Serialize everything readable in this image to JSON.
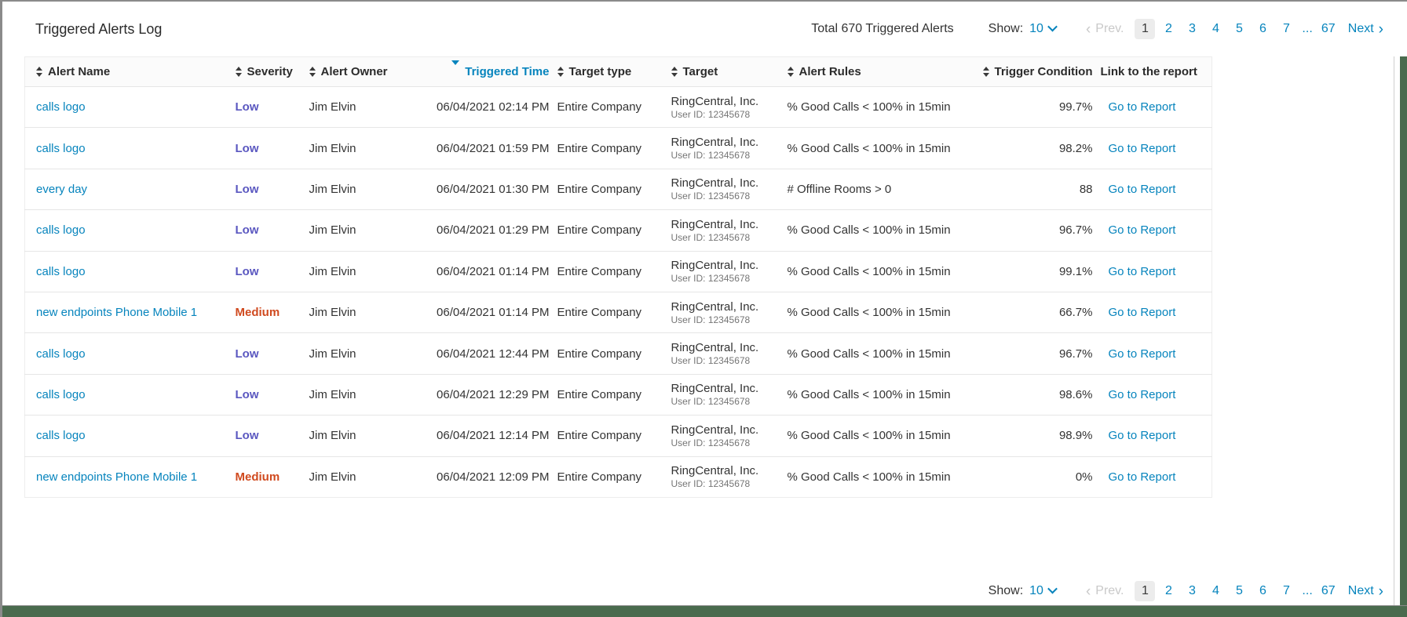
{
  "page": {
    "title": "Triggered Alerts Log",
    "total_text": "Total 670 Triggered Alerts",
    "show_label": "Show:",
    "show_value": "10"
  },
  "pagination": {
    "prev_label": "Prev.",
    "pages": [
      "1",
      "2",
      "3",
      "4",
      "5",
      "6",
      "7"
    ],
    "current_page": "1",
    "ellipsis": "...",
    "last_page": "67",
    "next_label": "Next"
  },
  "table": {
    "columns": [
      {
        "label": "Alert Name",
        "sort": "both",
        "align": "left"
      },
      {
        "label": "Severity",
        "sort": "both",
        "align": "left"
      },
      {
        "label": "Alert Owner",
        "sort": "both",
        "align": "left"
      },
      {
        "label": "Triggered Time",
        "sort": "desc",
        "align": "right"
      },
      {
        "label": "Target type",
        "sort": "both",
        "align": "left"
      },
      {
        "label": "Target",
        "sort": "both",
        "align": "left"
      },
      {
        "label": "Alert Rules",
        "sort": "both",
        "align": "left"
      },
      {
        "label": "Trigger Condition",
        "sort": "both",
        "align": "right"
      },
      {
        "label": "Link to the report",
        "sort": "none",
        "align": "left"
      }
    ],
    "rows": [
      {
        "name": "calls logo",
        "severity": "Low",
        "owner": "Jim Elvin",
        "time": "06/04/2021 02:14 PM",
        "target_type": "Entire Company",
        "target": "RingCentral, Inc.",
        "target_sub": "User ID: 12345678",
        "rule": "% Good Calls < 100% in 15min",
        "condition": "99.7%",
        "link": "Go to Report"
      },
      {
        "name": "calls logo",
        "severity": "Low",
        "owner": "Jim Elvin",
        "time": "06/04/2021 01:59 PM",
        "target_type": "Entire Company",
        "target": "RingCentral, Inc.",
        "target_sub": "User ID: 12345678",
        "rule": "% Good Calls < 100% in 15min",
        "condition": "98.2%",
        "link": "Go to Report"
      },
      {
        "name": "every day",
        "severity": "Low",
        "owner": "Jim Elvin",
        "time": "06/04/2021 01:30 PM",
        "target_type": "Entire Company",
        "target": "RingCentral, Inc.",
        "target_sub": "User ID: 12345678",
        "rule": "# Offline Rooms > 0",
        "condition": "88",
        "link": "Go to Report"
      },
      {
        "name": "calls logo",
        "severity": "Low",
        "owner": "Jim Elvin",
        "time": "06/04/2021 01:29 PM",
        "target_type": "Entire Company",
        "target": "RingCentral, Inc.",
        "target_sub": "User ID: 12345678",
        "rule": "% Good Calls < 100% in 15min",
        "condition": "96.7%",
        "link": "Go to Report"
      },
      {
        "name": "calls logo",
        "severity": "Low",
        "owner": "Jim Elvin",
        "time": "06/04/2021 01:14 PM",
        "target_type": "Entire Company",
        "target": "RingCentral, Inc.",
        "target_sub": "User ID: 12345678",
        "rule": "% Good Calls < 100% in 15min",
        "condition": "99.1%",
        "link": "Go to Report"
      },
      {
        "name": "new endpoints Phone Mobile 1",
        "severity": "Medium",
        "owner": "Jim Elvin",
        "time": "06/04/2021 01:14 PM",
        "target_type": "Entire Company",
        "target": "RingCentral, Inc.",
        "target_sub": "User ID: 12345678",
        "rule": "% Good Calls < 100% in 15min",
        "condition": "66.7%",
        "link": "Go to Report"
      },
      {
        "name": "calls logo",
        "severity": "Low",
        "owner": "Jim Elvin",
        "time": "06/04/2021 12:44 PM",
        "target_type": "Entire Company",
        "target": "RingCentral, Inc.",
        "target_sub": "User ID: 12345678",
        "rule": "% Good Calls < 100% in 15min",
        "condition": "96.7%",
        "link": "Go to Report"
      },
      {
        "name": "calls logo",
        "severity": "Low",
        "owner": "Jim Elvin",
        "time": "06/04/2021 12:29 PM",
        "target_type": "Entire Company",
        "target": "RingCentral, Inc.",
        "target_sub": "User ID: 12345678",
        "rule": "% Good Calls < 100% in 15min",
        "condition": "98.6%",
        "link": "Go to Report"
      },
      {
        "name": "calls logo",
        "severity": "Low",
        "owner": "Jim Elvin",
        "time": "06/04/2021 12:14 PM",
        "target_type": "Entire Company",
        "target": "RingCentral, Inc.",
        "target_sub": "User ID: 12345678",
        "rule": "% Good Calls < 100% in 15min",
        "condition": "98.9%",
        "link": "Go to Report"
      },
      {
        "name": "new endpoints Phone Mobile 1",
        "severity": "Medium",
        "owner": "Jim Elvin",
        "time": "06/04/2021 12:09 PM",
        "target_type": "Entire Company",
        "target": "RingCentral, Inc.",
        "target_sub": "User ID: 12345678",
        "rule": "% Good Calls < 100% in 15min",
        "condition": "0%",
        "link": "Go to Report"
      }
    ]
  },
  "colors": {
    "link_blue": "#0684bd",
    "severity_low": "#5a57c0",
    "severity_medium": "#d04a1f",
    "green_bar": "#4a6b4e"
  }
}
